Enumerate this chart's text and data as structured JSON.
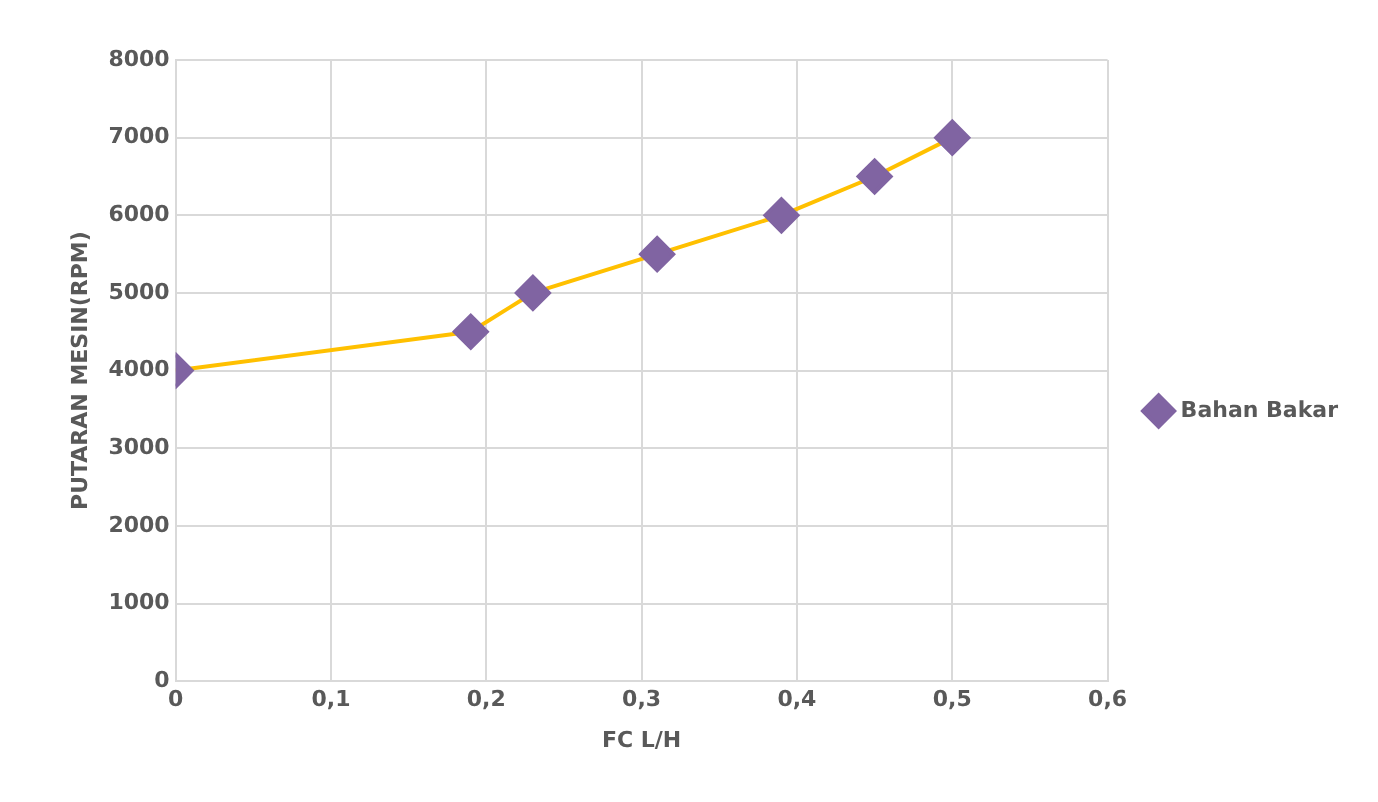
{
  "chart_data": {
    "type": "line",
    "xlabel": "FC L/H",
    "ylabel": "PUTARAN MESIN(RPM)",
    "x": [
      0,
      0.19,
      0.23,
      0.31,
      0.39,
      0.45,
      0.5
    ],
    "series": [
      {
        "name": "Bahan Bakar",
        "color": "#ffc000",
        "values": [
          4000,
          4500,
          5000,
          5500,
          6000,
          6500,
          7000
        ]
      }
    ],
    "xlim": [
      0,
      0.6
    ],
    "xticks": [
      0,
      {
        "value": 0.1,
        "label": "0,1"
      },
      {
        "value": 0.2,
        "label": "0,2"
      },
      {
        "value": 0.3,
        "label": "0,3"
      },
      {
        "value": 0.4,
        "label": "0,4"
      },
      {
        "value": 0.5,
        "label": "0,5"
      },
      {
        "value": 0.6,
        "label": "0,6"
      }
    ],
    "ylim": [
      0,
      8000
    ],
    "yticks": [
      0,
      1000,
      2000,
      3000,
      4000,
      5000,
      6000,
      7000,
      8000
    ],
    "grid": true,
    "legend": "right",
    "marker": "diamond",
    "line_style": "solid"
  }
}
